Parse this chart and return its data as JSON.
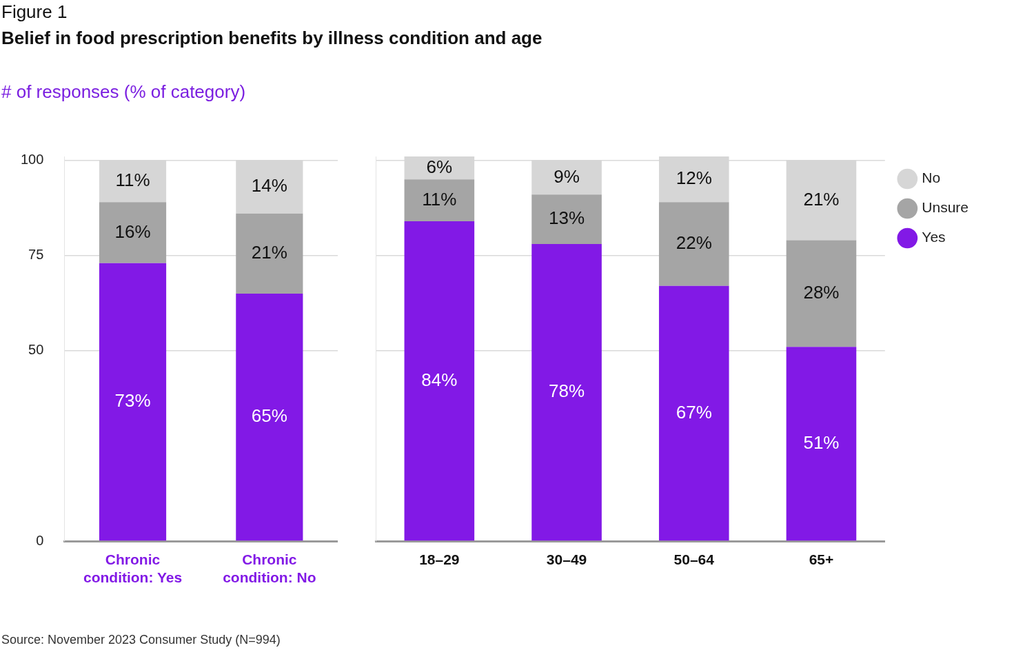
{
  "chart_data": [
    {
      "type": "bar",
      "title": "Figure 1",
      "subtitle": "Belief in food prescription benefits by illness condition and age",
      "ylabel": "# of responses (% of category)",
      "stacked": true,
      "grid": "y",
      "categories": [
        "Chronic condition: Yes",
        "Chronic condition: No"
      ],
      "series": [
        {
          "color": "#8219e6",
          "values": [
            73,
            65
          ],
          "value_labels": [
            "73%",
            "65%"
          ]
        },
        {
          "color": "#a5a5a5",
          "values": [
            16,
            21
          ],
          "value_labels": [
            "16%",
            "21%"
          ]
        },
        {
          "color": "#d6d6d6",
          "values": [
            11,
            14
          ],
          "value_labels": [
            "11%",
            "14%"
          ]
        }
      ],
      "ylim": [
        0,
        101
      ],
      "yticks": [
        0,
        50,
        75,
        100
      ],
      "annotations": [
        "Source: November 2023 Consumer Study (N=994)"
      ]
    },
    {
      "type": "bar",
      "stacked": true,
      "grid": "y",
      "legend": "top right",
      "tick_labels": "x",
      "categories": [
        "18–29",
        "30–49",
        "50–64",
        "65+"
      ],
      "series": [
        {
          "name": "Yes",
          "color": "#8219e6",
          "values": [
            84,
            78,
            67,
            51
          ],
          "value_labels": [
            "84%",
            "78%",
            "67%",
            "51%"
          ]
        },
        {
          "name": "Unsure",
          "color": "#a5a5a5",
          "values": [
            11,
            13,
            22,
            28
          ],
          "value_labels": [
            "11%",
            "13%",
            "22%",
            "28%"
          ]
        },
        {
          "name": "No",
          "color": "#d6d6d6",
          "values": [
            6,
            9,
            12,
            21
          ],
          "value_labels": [
            "6%",
            "9%",
            "12%",
            "21%"
          ]
        }
      ],
      "ylim": [
        0,
        101
      ],
      "yticks": [
        0,
        50,
        75,
        100
      ]
    }
  ]
}
